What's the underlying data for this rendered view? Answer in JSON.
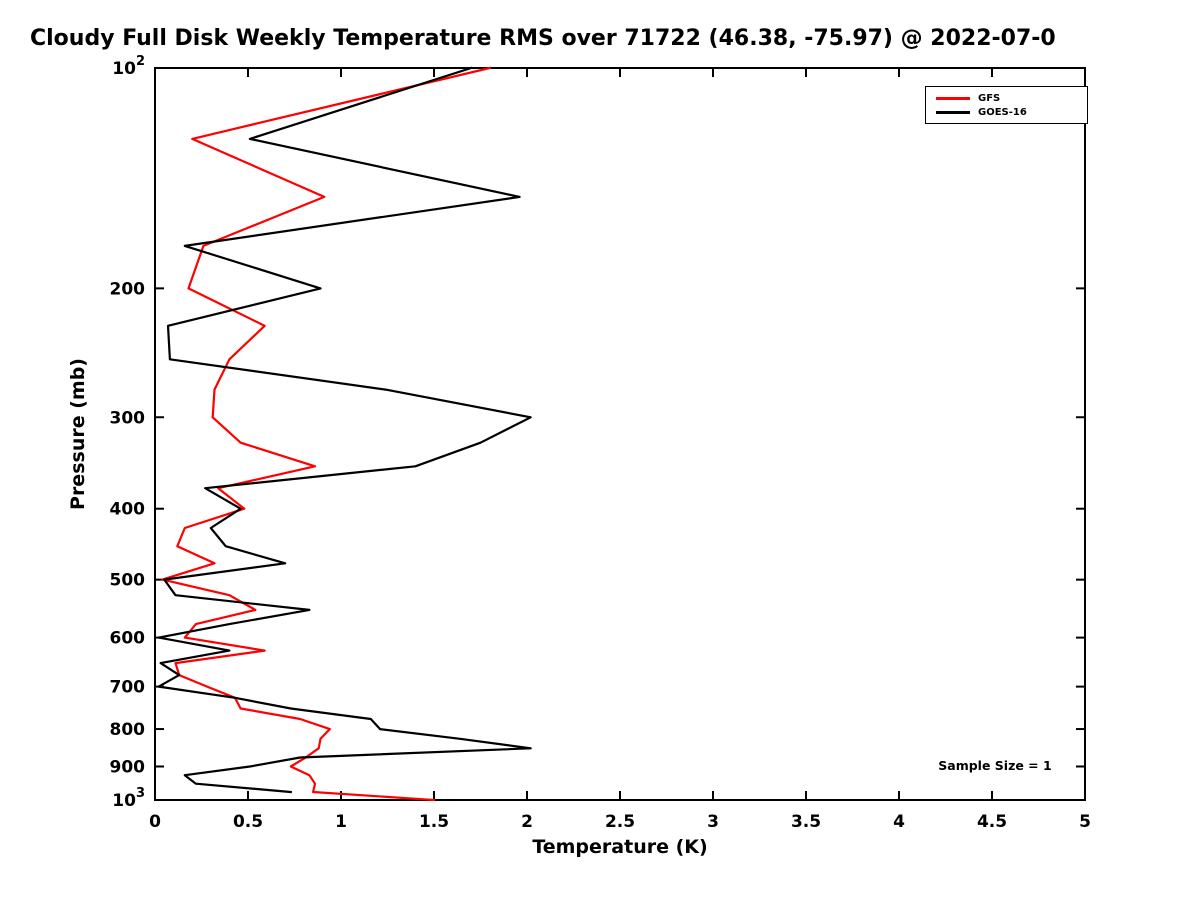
{
  "chart_data": {
    "type": "line",
    "title": "Cloudy Full Disk Weekly Temperature RMS over 71722 (46.38, -75.97) @ 2022-07-0",
    "xlabel": "Temperature (K)",
    "ylabel": "Pressure (mb)",
    "annotation": "Sample Size = 1",
    "x_axis": {
      "min": 0,
      "max": 5,
      "scale": "linear"
    },
    "y_axis": {
      "min_mb": 100,
      "max_mb": 1000,
      "scale": "log10",
      "direction": "inverted"
    },
    "grid": false,
    "legend_position": "top-right",
    "xticks": [
      {
        "v": 0,
        "label": "0"
      },
      {
        "v": 0.5,
        "label": "0.5"
      },
      {
        "v": 1,
        "label": "1"
      },
      {
        "v": 1.5,
        "label": "1.5"
      },
      {
        "v": 2,
        "label": "2"
      },
      {
        "v": 2.5,
        "label": "2.5"
      },
      {
        "v": 3,
        "label": "3"
      },
      {
        "v": 3.5,
        "label": "3.5"
      },
      {
        "v": 4,
        "label": "4"
      },
      {
        "v": 4.5,
        "label": "4.5"
      },
      {
        "v": 5,
        "label": "5"
      }
    ],
    "yticks": [
      {
        "v": 100,
        "label": "10^2"
      },
      {
        "v": 200,
        "label": "200"
      },
      {
        "v": 300,
        "label": "300"
      },
      {
        "v": 400,
        "label": "400"
      },
      {
        "v": 500,
        "label": "500"
      },
      {
        "v": 600,
        "label": "600"
      },
      {
        "v": 700,
        "label": "700"
      },
      {
        "v": 800,
        "label": "800"
      },
      {
        "v": 900,
        "label": "900"
      },
      {
        "v": 1000,
        "label": "10^3"
      }
    ],
    "pressure_mb": [
      100,
      125,
      150,
      175,
      200,
      225,
      250,
      275,
      300,
      325,
      350,
      375,
      400,
      425,
      450,
      475,
      500,
      525,
      550,
      575,
      600,
      625,
      650,
      675,
      700,
      725,
      750,
      775,
      800,
      825,
      850,
      875,
      900,
      925,
      950,
      975,
      1000
    ],
    "series": [
      {
        "name": "GFS",
        "color": "#ff0000",
        "values": [
          1.8,
          0.2,
          0.91,
          0.26,
          0.18,
          0.59,
          0.4,
          0.32,
          0.31,
          0.46,
          0.86,
          0.34,
          0.48,
          0.16,
          0.12,
          0.32,
          0.04,
          0.4,
          0.54,
          0.22,
          0.16,
          0.59,
          0.11,
          0.13,
          0.28,
          0.43,
          0.46,
          0.78,
          0.94,
          0.89,
          0.88,
          0.81,
          0.73,
          0.83,
          0.86,
          0.85,
          1.5
        ]
      },
      {
        "name": "GOES-16",
        "color": "#000000",
        "values": [
          1.7,
          0.51,
          1.96,
          0.16,
          0.89,
          0.07,
          0.08,
          1.24,
          2.02,
          1.75,
          1.4,
          0.27,
          0.46,
          0.3,
          0.38,
          0.7,
          0.05,
          0.11,
          0.83,
          0.4,
          0.02,
          0.4,
          0.03,
          0.13,
          0.02,
          0.43,
          0.73,
          1.16,
          1.21,
          1.64,
          2.02,
          0.78,
          0.51,
          0.16,
          0.22,
          0.73,
          null
        ]
      }
    ]
  }
}
